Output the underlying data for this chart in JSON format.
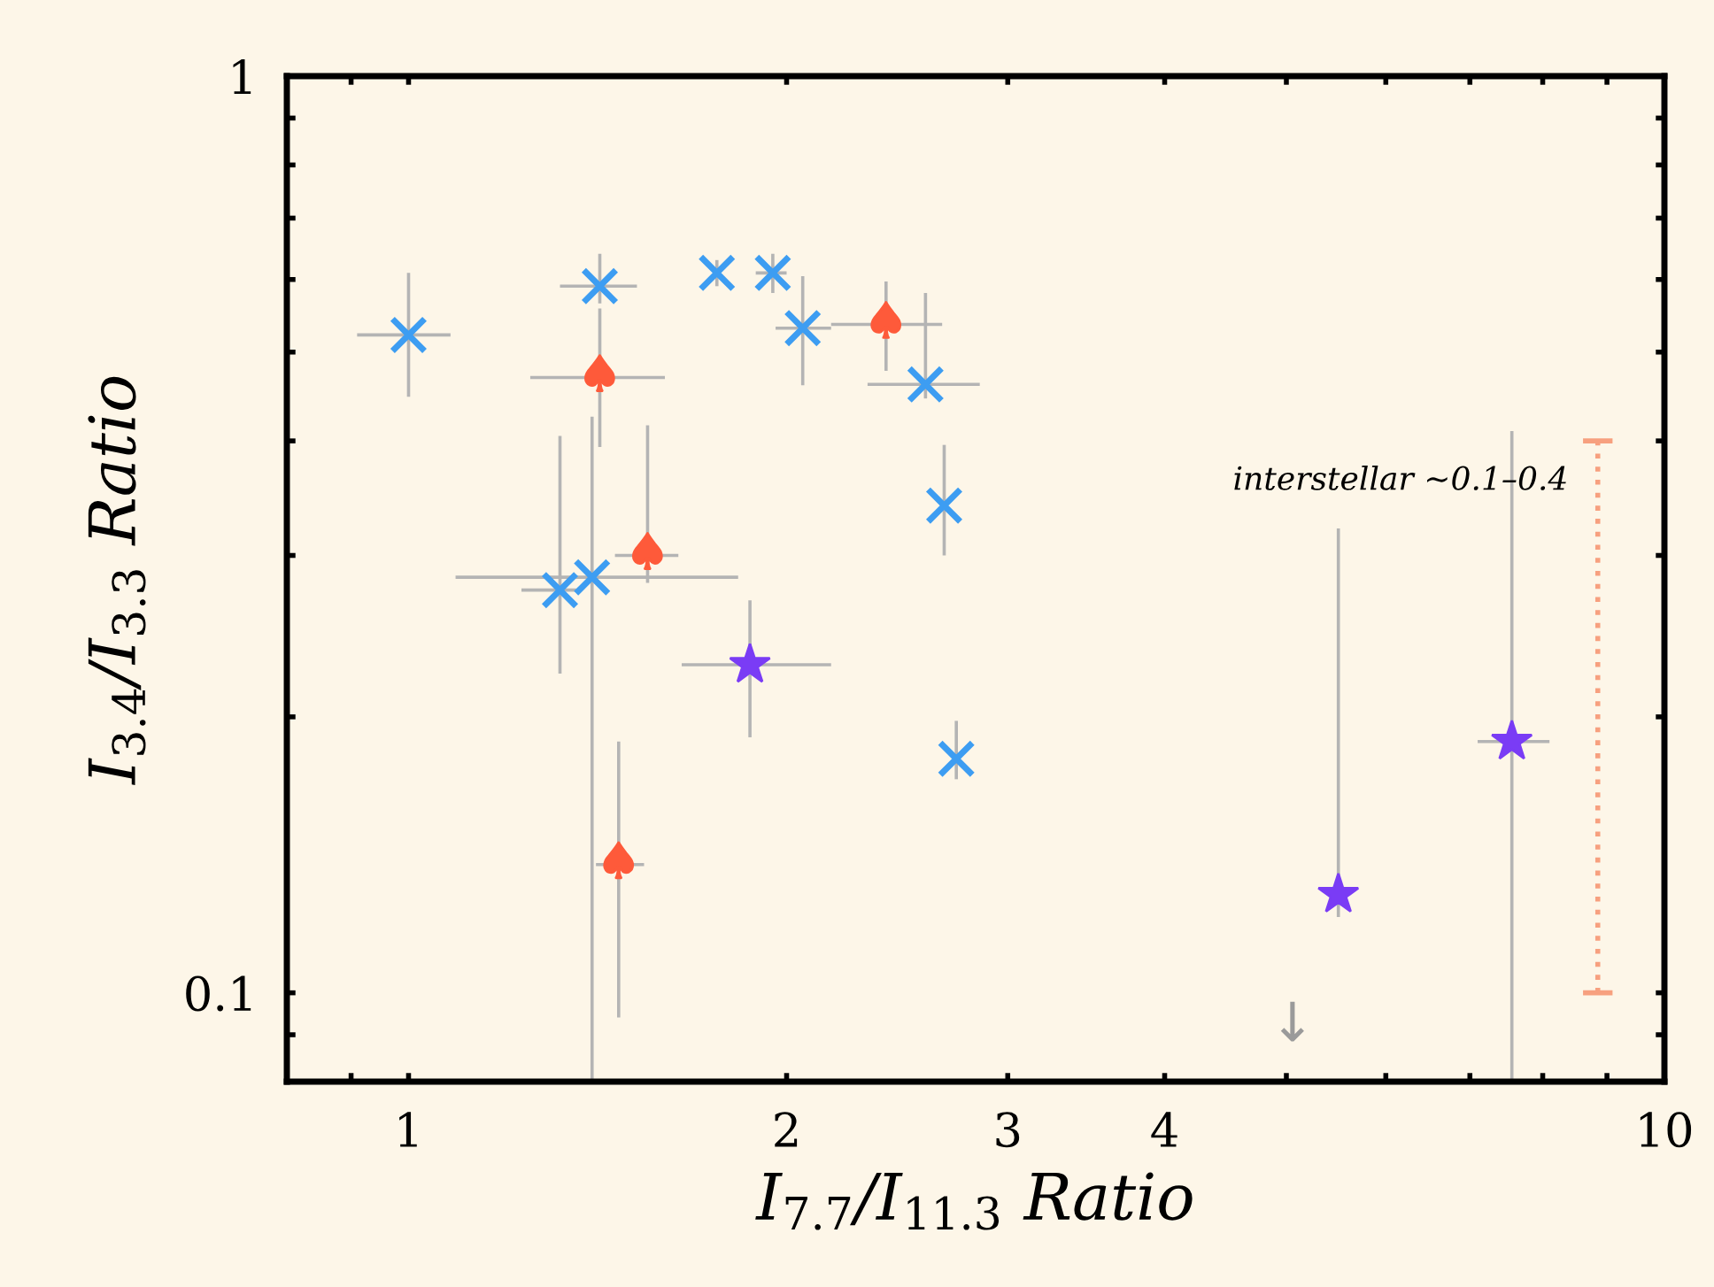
{
  "chart_data": {
    "type": "scatter",
    "xlabel": "I$_{7.7}$/I$_{11.3}$ Ratio",
    "ylabel": "I$_{3.4}$/I$_{3.3}$ Ratio",
    "log": "xy",
    "grid": false,
    "legend": false,
    "xlim": [
      0.8,
      10
    ],
    "ylim": [
      0.08,
      1
    ],
    "xticks": [
      {
        "value": 0.9,
        "label": null
      },
      1,
      2,
      3,
      4,
      {
        "value": 5,
        "label": null
      },
      {
        "value": 6,
        "label": null
      },
      {
        "value": 7,
        "label": null
      },
      {
        "value": 8,
        "label": null
      },
      {
        "value": 9,
        "label": null
      },
      10
    ],
    "yticks": [
      {
        "value": 0.09,
        "label": null
      },
      0.1,
      {
        "value": 0.2,
        "label": null
      },
      {
        "value": 0.3,
        "label": null
      },
      {
        "value": 0.4,
        "label": null
      },
      {
        "value": 0.5,
        "label": null
      },
      {
        "value": 0.6,
        "label": null
      },
      {
        "value": 0.7,
        "label": null
      },
      {
        "value": 0.8,
        "label": null
      },
      {
        "value": 0.9,
        "label": null
      },
      1
    ],
    "series": [
      {
        "marker": "cross",
        "color": "#3d9df2",
        "x": [
          1.0,
          1.42,
          1.76,
          1.95,
          2.06,
          2.58,
          2.67,
          1.32,
          1.4,
          2.73
        ],
        "values": [
          0.522,
          0.59,
          0.61,
          0.61,
          0.531,
          0.461,
          0.34,
          0.275,
          0.284,
          0.18
        ],
        "errors": [
          [
            0.447,
            0.61
          ],
          [
            0.565,
            0.64
          ],
          [
            0.59,
            0.63
          ],
          [
            0.58,
            0.64
          ],
          [
            0.46,
            0.605
          ],
          [
            0.445,
            0.58
          ],
          [
            0.3,
            0.396
          ],
          [
            0.223,
            0.405
          ],
          [
            0.08,
            0.425
          ],
          [
            0.171,
            0.198
          ]
        ],
        "xerrors": [
          [
            0.91,
            1.08
          ],
          [
            1.32,
            1.52
          ],
          null,
          [
            1.89,
            2.0
          ],
          [
            1.96,
            2.17
          ],
          [
            2.32,
            2.85
          ],
          null,
          [
            1.23,
            1.36
          ],
          [
            1.09,
            1.83
          ],
          null
        ]
      },
      {
        "color": "#fe5a3a",
        "x": [
          1.42,
          1.55,
          2.4,
          1.47
        ],
        "values": [
          0.469,
          0.3,
          0.536,
          0.138
        ],
        "errors": [
          [
            0.394,
            0.558
          ],
          [
            0.28,
            0.416
          ],
          [
            0.477,
            0.597
          ],
          [
            0.094,
            0.188
          ]
        ],
        "xerrors": [
          [
            1.25,
            1.6
          ],
          [
            1.46,
            1.64
          ],
          [
            2.17,
            2.66
          ],
          [
            1.41,
            1.54
          ]
        ]
      },
      {
        "marker": "star",
        "color": "#7a3cf5",
        "x": [
          1.87,
          5.5,
          7.56
        ],
        "values": [
          0.228,
          0.128,
          0.188
        ],
        "errors": [
          [
            0.19,
            0.268
          ],
          [
            0.121,
            0.321
          ],
          [
            0.08,
            0.41
          ]
        ],
        "xerrors": [
          [
            1.65,
            2.17
          ],
          null,
          [
            7.1,
            8.1
          ]
        ]
      },
      {
        "type": "line",
        "line_style": "dotted",
        "color": "#f7a07f",
        "x": [
          8.85,
          8.85
        ],
        "values": [
          0.1,
          0.4
        ]
      }
    ],
    "annotations": [
      {
        "text": "interstellar ~0.1–0.4",
        "x": 8.85,
        "y": 0.4
      },
      "↓"
    ]
  }
}
